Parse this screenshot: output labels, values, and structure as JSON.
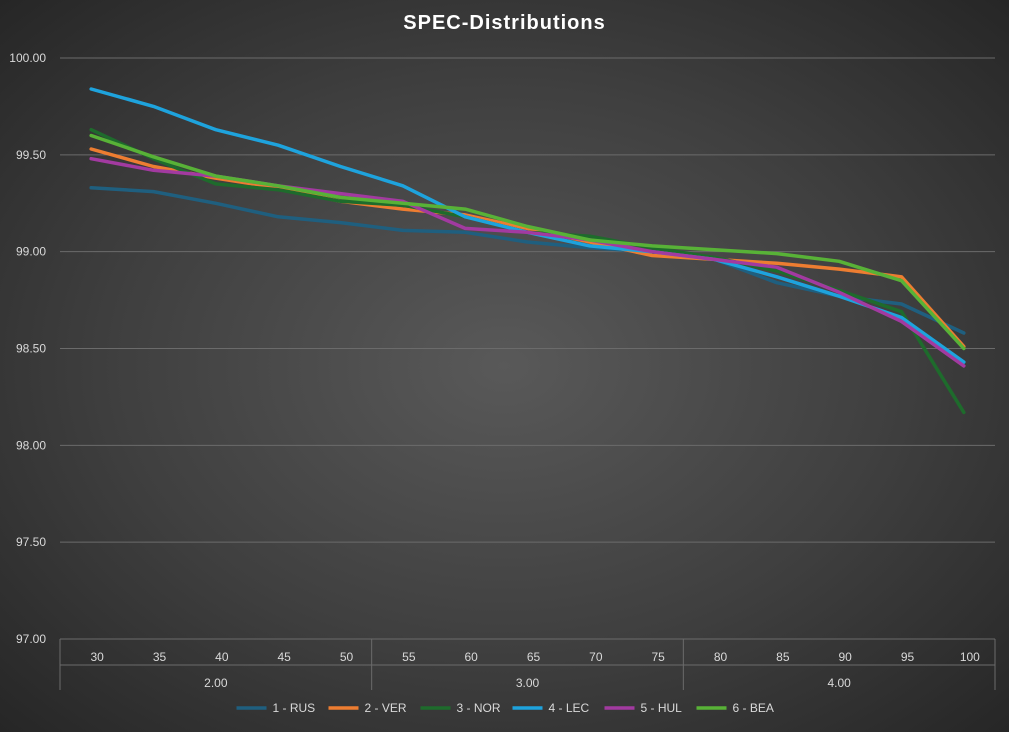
{
  "chart_data": {
    "type": "line",
    "title": "SPEC-Distributions",
    "xlabel": "",
    "ylabel": "",
    "ylim": [
      97.0,
      100.0
    ],
    "yticks": [
      "97.00",
      "97.50",
      "98.00",
      "98.50",
      "99.00",
      "99.50",
      "100.00"
    ],
    "ytick_values": [
      97.0,
      97.5,
      98.0,
      98.5,
      99.0,
      99.5,
      100.0
    ],
    "categories": [
      "30",
      "35",
      "40",
      "45",
      "50",
      "55",
      "60",
      "65",
      "70",
      "75",
      "80",
      "85",
      "90",
      "95",
      "100"
    ],
    "groups": [
      {
        "label": "2.00",
        "span": 5
      },
      {
        "label": "3.00",
        "span": 5
      },
      {
        "label": "4.00",
        "span": 5
      }
    ],
    "grid": true,
    "legend": "bottom",
    "series": [
      {
        "name": "1 - RUS",
        "color": "#1f5f7f",
        "values": [
          99.33,
          99.31,
          99.25,
          99.18,
          99.15,
          99.11,
          99.1,
          99.05,
          99.02,
          99.0,
          98.96,
          98.84,
          98.77,
          98.73,
          98.58
        ]
      },
      {
        "name": "2 - VER",
        "color": "#ed7d31",
        "values": [
          99.53,
          99.44,
          99.38,
          99.33,
          99.26,
          99.22,
          99.19,
          99.12,
          99.05,
          98.98,
          98.96,
          98.94,
          98.91,
          98.87,
          98.51
        ]
      },
      {
        "name": "3 - NOR",
        "color": "#1e6b2c",
        "values": [
          99.63,
          99.48,
          99.35,
          99.32,
          99.26,
          99.24,
          99.18,
          99.1,
          99.08,
          99.02,
          98.97,
          98.9,
          98.8,
          98.69,
          98.17
        ]
      },
      {
        "name": "4 - LEC",
        "color": "#1ea3dd",
        "values": [
          99.84,
          99.75,
          99.63,
          99.55,
          99.44,
          99.34,
          99.18,
          99.1,
          99.03,
          99.0,
          98.96,
          98.87,
          98.77,
          98.66,
          98.43
        ]
      },
      {
        "name": "5 - HUL",
        "color": "#a23aa0",
        "values": [
          99.48,
          99.42,
          99.39,
          99.34,
          99.3,
          99.26,
          99.12,
          99.1,
          99.06,
          99.0,
          98.96,
          98.92,
          98.79,
          98.64,
          98.41
        ]
      },
      {
        "name": "6 - BEA",
        "color": "#58b237",
        "values": [
          99.6,
          99.49,
          99.39,
          99.34,
          99.28,
          99.25,
          99.22,
          99.13,
          99.06,
          99.03,
          99.01,
          98.99,
          98.95,
          98.85,
          98.5
        ]
      }
    ]
  }
}
